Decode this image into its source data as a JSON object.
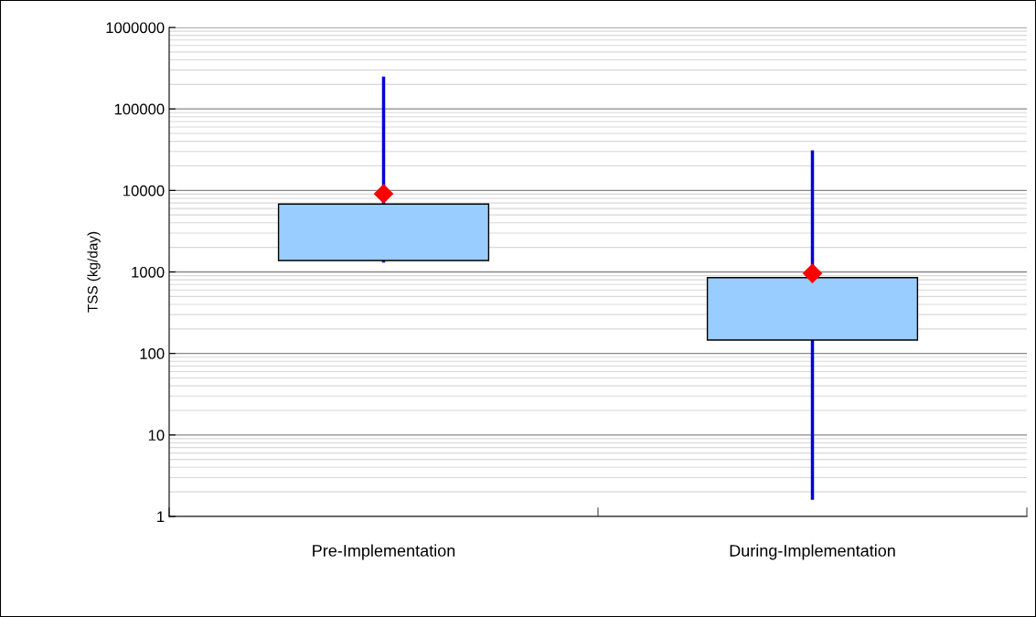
{
  "chart_data": {
    "type": "box",
    "ylabel": "TSS (kg/day)",
    "categories": [
      "Pre-Implementation",
      "During-Implementation"
    ],
    "color": "#99ccff",
    "boxes": [
      {
        "low": 1300,
        "q1": 1380,
        "median": null,
        "q3": 6800,
        "high": 250000,
        "mean": 9100
      },
      {
        "low": 1.6,
        "q1": 146,
        "median": null,
        "q3": 850,
        "high": 31000,
        "mean": 960
      }
    ],
    "log": true,
    "ylim": [
      1,
      1000000
    ],
    "yticks": [
      1,
      10,
      100,
      1000,
      10000,
      100000,
      1000000
    ],
    "grid": "y"
  }
}
